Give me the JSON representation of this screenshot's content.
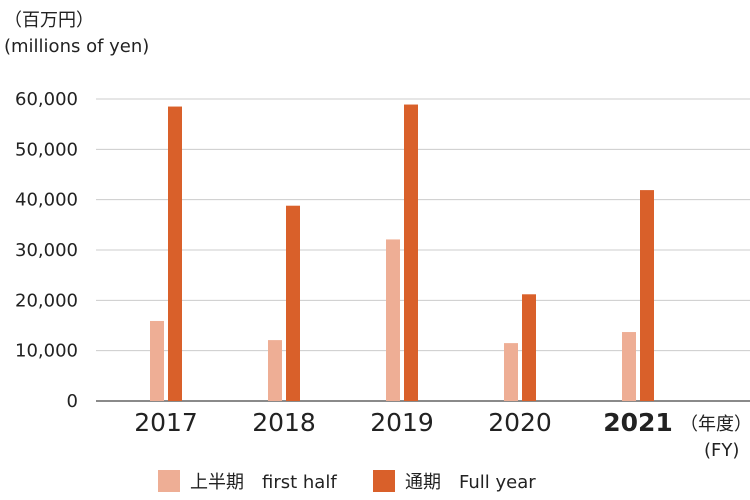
{
  "unit_jp": "（百万円）",
  "unit_en": "(millions of yen)",
  "fy_jp": "（年度）",
  "fy_en": "(FY)",
  "legend": [
    {
      "label": "上半期　first half",
      "color": "#eeae95"
    },
    {
      "label": "通期　Full year",
      "color": "#d9602a"
    }
  ],
  "chart_data": {
    "type": "bar",
    "categories": [
      "2017",
      "2018",
      "2019",
      "2020",
      "2021"
    ],
    "highlight_category": "2021",
    "series": [
      {
        "name": "上半期　first half",
        "color": "#eeae95",
        "values": [
          15900,
          12100,
          32100,
          11500,
          13700
        ]
      },
      {
        "name": "通期　Full year",
        "color": "#d9602a",
        "values": [
          58500,
          38800,
          58900,
          21200,
          41900
        ]
      }
    ],
    "yticks": [
      "0",
      "10,000",
      "20,000",
      "30,000",
      "40,000",
      "50,000",
      "60,000"
    ],
    "ylim": [
      0,
      60000
    ],
    "grid": true
  }
}
